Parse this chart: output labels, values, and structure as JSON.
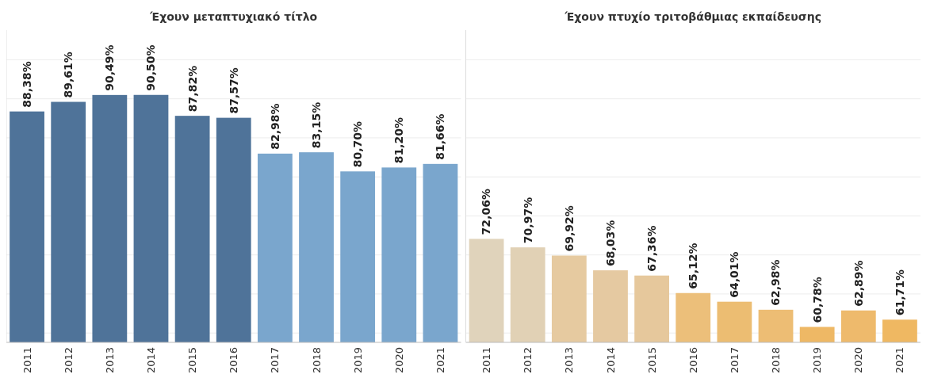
{
  "chart_data": [
    {
      "type": "bar",
      "title": "Έχουν μεταπτυχιακό τίτλο",
      "categories": [
        "2011",
        "2012",
        "2013",
        "2014",
        "2015",
        "2016",
        "2017",
        "2018",
        "2019",
        "2020",
        "2021"
      ],
      "values": [
        88.38,
        89.61,
        90.49,
        90.5,
        87.82,
        87.57,
        82.98,
        83.15,
        80.7,
        81.2,
        81.66
      ],
      "value_labels": [
        "88,38%",
        "89,61%",
        "90,49%",
        "90,50%",
        "87,82%",
        "87,57%",
        "82,98%",
        "83,15%",
        "80,70%",
        "81,20%",
        "81,66%"
      ],
      "colors": [
        "#4f7399",
        "#4f7399",
        "#4f7399",
        "#4f7399",
        "#4f7399",
        "#4f7399",
        "#7aa6cd",
        "#7aa6cd",
        "#7aa6cd",
        "#7aa6cd",
        "#7aa6cd"
      ],
      "ylim": [
        58.8,
        98.8
      ],
      "yticks": [
        {
          "value": 60,
          "label": null
        },
        {
          "value": 65,
          "label": null
        },
        {
          "value": 70,
          "label": null
        },
        {
          "value": 75,
          "label": null
        },
        {
          "value": 80,
          "label": null
        },
        {
          "value": 85,
          "label": null
        },
        {
          "value": 90,
          "label": null
        },
        {
          "value": 95,
          "label": null
        }
      ],
      "grid": "y",
      "tick_labels": "x"
    },
    {
      "type": "bar",
      "title": "Έχουν πτυχίο τριτοβάθμιας εκπαίδευσης",
      "categories": [
        "2011",
        "2012",
        "2013",
        "2014",
        "2015",
        "2016",
        "2017",
        "2018",
        "2019",
        "2020",
        "2021"
      ],
      "values": [
        72.06,
        70.97,
        69.92,
        68.03,
        67.36,
        65.12,
        64.01,
        62.98,
        60.78,
        62.89,
        61.71
      ],
      "value_labels": [
        "72,06%",
        "70,97%",
        "69,92%",
        "68,03%",
        "67,36%",
        "65,12%",
        "64,01%",
        "62,98%",
        "60,78%",
        "62,89%",
        "61,71%"
      ],
      "colors": [
        "#e0d3bb",
        "#e1d1b5",
        "#e6caa0",
        "#e5c9a1",
        "#e6c89c",
        "#ecbf7a",
        "#ecbd72",
        "#edbd74",
        "#eeb865",
        "#eeba6c",
        "#efb862"
      ],
      "ylim": [
        58.8,
        98.8
      ],
      "yticks": [
        {
          "value": 60,
          "label": null
        },
        {
          "value": 65,
          "label": null
        },
        {
          "value": 70,
          "label": null
        },
        {
          "value": 75,
          "label": null
        },
        {
          "value": 80,
          "label": null
        },
        {
          "value": 85,
          "label": null
        },
        {
          "value": 90,
          "label": null
        },
        {
          "value": 95,
          "label": null
        }
      ],
      "grid": "y",
      "tick_labels": "x"
    }
  ]
}
